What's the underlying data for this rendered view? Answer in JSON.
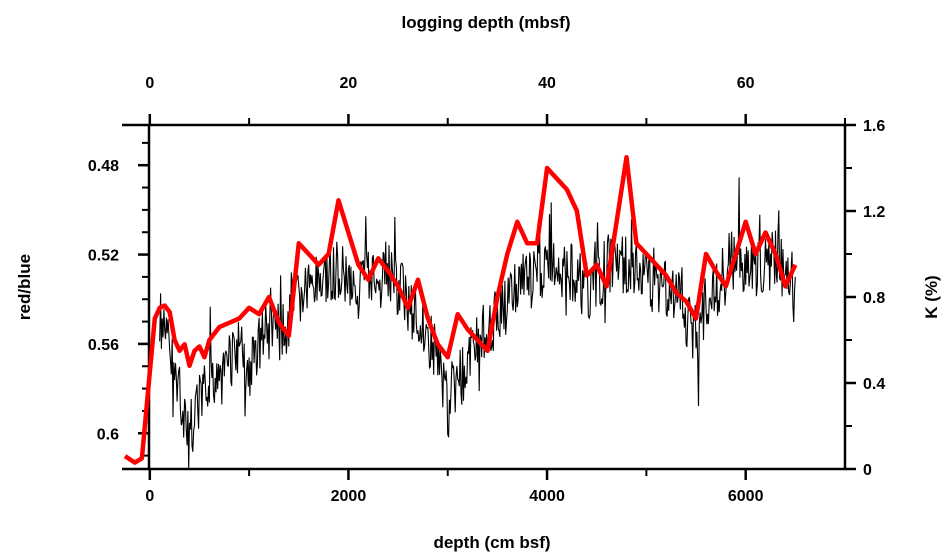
{
  "chart_data": {
    "type": "line",
    "title": "",
    "axes": {
      "bottom": {
        "label": "depth (cm bsf)",
        "ticks": [
          "0",
          "2000",
          "4000",
          "6000"
        ],
        "tick_values": [
          0,
          2000,
          4000,
          6000
        ],
        "range": [
          -280,
          7000
        ]
      },
      "top": {
        "label": "logging depth (mbsf)",
        "ticks": [
          "0",
          "20",
          "40",
          "60"
        ],
        "tick_values": [
          0,
          20,
          40,
          60
        ],
        "range": [
          -2.8,
          70
        ]
      },
      "left": {
        "label": "red/blue",
        "ticks": [
          "0.48",
          "0.52",
          "0.56",
          "0.6"
        ],
        "tick_values": [
          0.48,
          0.52,
          0.56,
          0.6
        ],
        "range": [
          0.616,
          0.462
        ],
        "inverted": true
      },
      "right": {
        "label": "K (%)",
        "ticks": [
          "1.6",
          "1.2",
          "0.8",
          "0.4",
          "0"
        ],
        "tick_values": [
          1.6,
          1.2,
          0.8,
          0.4,
          0
        ],
        "range": [
          0,
          1.6
        ]
      }
    },
    "series": [
      {
        "axes": "bottom-left",
        "color": "#000000",
        "x": [
          100,
          200,
          300,
          400,
          500,
          600,
          700,
          800,
          900,
          1000,
          1100,
          1200,
          1300,
          1400,
          1500,
          1600,
          1700,
          1800,
          1900,
          2000,
          2100,
          2200,
          2300,
          2400,
          2500,
          2600,
          2700,
          2800,
          2900,
          3000,
          3100,
          3200,
          3300,
          3400,
          3500,
          3600,
          3700,
          3800,
          3900,
          4000,
          4100,
          4200,
          4300,
          4400,
          4500,
          4600,
          4700,
          4800,
          4900,
          5000,
          5100,
          5200,
          5300,
          5400,
          5500,
          5600,
          5700,
          5800,
          5900,
          6000,
          6100,
          6200,
          6300,
          6400,
          6500
        ],
        "y": [
          0.548,
          0.565,
          0.582,
          0.598,
          0.589,
          0.575,
          0.57,
          0.566,
          0.563,
          0.575,
          0.56,
          0.553,
          0.555,
          0.55,
          0.541,
          0.537,
          0.533,
          0.528,
          0.526,
          0.531,
          0.535,
          0.532,
          0.527,
          0.526,
          0.535,
          0.541,
          0.55,
          0.555,
          0.568,
          0.582,
          0.578,
          0.568,
          0.556,
          0.552,
          0.548,
          0.542,
          0.535,
          0.53,
          0.533,
          0.524,
          0.528,
          0.524,
          0.532,
          0.535,
          0.534,
          0.525,
          0.523,
          0.525,
          0.528,
          0.532,
          0.535,
          0.535,
          0.54,
          0.547,
          0.557,
          0.543,
          0.535,
          0.526,
          0.521,
          0.524,
          0.528,
          0.525,
          0.522,
          0.526,
          0.53
        ]
      },
      {
        "axes": "bottom-right",
        "color": "#ff0000",
        "x": [
          -250,
          -150,
          -80,
          0,
          50,
          100,
          150,
          200,
          250,
          300,
          350,
          400,
          450,
          500,
          550,
          600,
          700,
          800,
          900,
          1000,
          1100,
          1200,
          1300,
          1400,
          1500,
          1600,
          1700,
          1800,
          1900,
          2000,
          2100,
          2200,
          2300,
          2400,
          2500,
          2600,
          2700,
          2800,
          2900,
          3000,
          3100,
          3200,
          3300,
          3400,
          3500,
          3600,
          3700,
          3800,
          3900,
          4000,
          4100,
          4200,
          4300,
          4400,
          4500,
          4600,
          4700,
          4800,
          4900,
          5000,
          5100,
          5200,
          5300,
          5400,
          5500,
          5600,
          5700,
          5800,
          5900,
          6000,
          6100,
          6200,
          6300,
          6400,
          6500
        ],
        "y": [
          0.06,
          0.03,
          0.05,
          0.45,
          0.7,
          0.75,
          0.76,
          0.73,
          0.6,
          0.55,
          0.58,
          0.48,
          0.55,
          0.57,
          0.52,
          0.6,
          0.66,
          0.68,
          0.7,
          0.75,
          0.72,
          0.8,
          0.68,
          0.62,
          1.05,
          1.0,
          0.95,
          1.0,
          1.25,
          1.1,
          0.95,
          0.88,
          0.98,
          0.92,
          0.85,
          0.75,
          0.88,
          0.7,
          0.58,
          0.52,
          0.72,
          0.65,
          0.6,
          0.55,
          0.8,
          1.0,
          1.15,
          1.05,
          1.05,
          1.4,
          1.35,
          1.3,
          1.2,
          0.9,
          0.95,
          0.85,
          1.15,
          1.45,
          1.05,
          1.0,
          0.95,
          0.9,
          0.82,
          0.78,
          0.7,
          1.0,
          0.92,
          0.85,
          1.0,
          1.15,
          1.0,
          1.1,
          1.0,
          0.85,
          0.95
        ]
      }
    ]
  }
}
